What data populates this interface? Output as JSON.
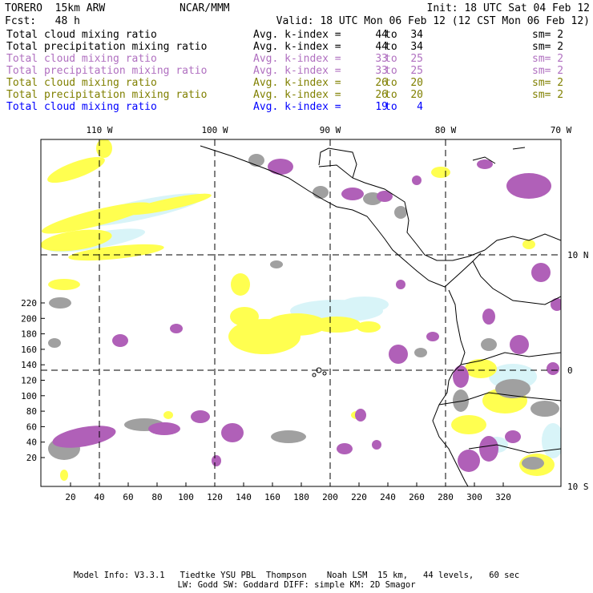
{
  "header": {
    "model": "TORERO  15km ARW",
    "org": "NCAR/MMM",
    "init": "Init: 18 UTC Sat 04 Feb 12",
    "fcst": "Fcst:   48 h",
    "valid": "Valid: 18 UTC Mon 06 Feb 12 (12 CST Mon 06 Feb 12)"
  },
  "legend": [
    {
      "name": "Total cloud mixing ratio",
      "avg": "Avg. k-index =",
      "from": "44",
      "to_word": "to",
      "to": "34",
      "sm": "sm= 2",
      "color": "#000000"
    },
    {
      "name": "Total precipitation mixing ratio",
      "avg": "Avg. k-index =",
      "from": "44",
      "to_word": "to",
      "to": "34",
      "sm": "sm= 2",
      "color": "#000000"
    },
    {
      "name": "Total cloud mixing ratio",
      "avg": "Avg. k-index =",
      "from": "33",
      "to_word": "to",
      "to": "25",
      "sm": "sm= 2",
      "color": "#b070c0"
    },
    {
      "name": "Total precipitation mixing ratio",
      "avg": "Avg. k-index =",
      "from": "33",
      "to_word": "to",
      "to": "25",
      "sm": "sm= 2",
      "color": "#b070c0"
    },
    {
      "name": "Total cloud mixing ratio",
      "avg": "Avg. k-index =",
      "from": "26",
      "to_word": "to",
      "to": "20",
      "sm": "sm= 2",
      "color": "#808000"
    },
    {
      "name": "Total precipitation mixing ratio",
      "avg": "Avg. k-index =",
      "from": "26",
      "to_word": "to",
      "to": "20",
      "sm": "sm= 2",
      "color": "#808000"
    },
    {
      "name": "Total cloud mixing ratio",
      "avg": "Avg. k-index =",
      "from": "19",
      "to_word": "to",
      "to": "4",
      "sm": "",
      "color": "#0000ff"
    }
  ],
  "map": {
    "lon_labels": [
      "110 W",
      "100 W",
      "90 W",
      "80 W",
      "70 W"
    ],
    "lat_labels": [
      "10 N",
      "0",
      "10 S"
    ],
    "x_ticks": [
      "20",
      "40",
      "60",
      "80",
      "100",
      "120",
      "140",
      "160",
      "180",
      "200",
      "220",
      "240",
      "260",
      "280",
      "300",
      "320"
    ],
    "y_ticks": [
      "20",
      "40",
      "60",
      "80",
      "100",
      "120",
      "140",
      "160",
      "180",
      "200",
      "220"
    ],
    "colors": {
      "gray": "#a0a0a0",
      "purple": "#b060b8",
      "yellow": "#ffff50",
      "light_blue": "#d8f4f8",
      "coast": "#000000"
    }
  },
  "footer": {
    "line1": "Model Info: V3.3.1   Tiedtke YSU PBL  Thompson    Noah LSM  15 km,   44 levels,   60 sec",
    "line2": "LW: Godd SW: Goddard DIFF: simple KM: 2D Smagor"
  }
}
